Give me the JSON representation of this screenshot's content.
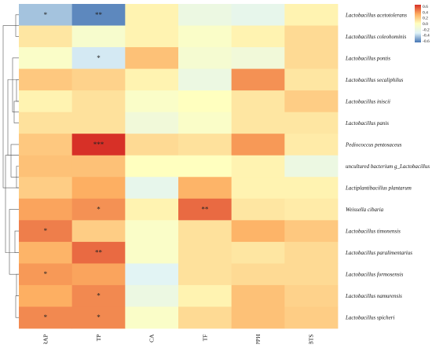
{
  "chart_data": {
    "type": "heatmap",
    "columns": [
      "FRAP",
      "TP",
      "CA",
      "TF",
      "DPPH",
      "ABTS"
    ],
    "rows": [
      "Lactobacillus acetotolerans",
      "Lactobacillus coleohominis",
      "Lactobacillus pontis",
      "Lactobacillus secaliphilus",
      "Lactobacillus iniscii",
      "Lactobacillus panis",
      "Pediococcus pentosaceus",
      "uncultured bacterium g_Lactobacillus",
      "Lactiplantibacillus plantarum",
      "Weissella cibaria",
      "Lactobacillus timonensis",
      "Lactobacillus paralimentarius",
      "Lactobacillus formosensis",
      "Lactobacillus namurensis",
      "Lactobacillus spicheri"
    ],
    "values": [
      [
        -0.45,
        -0.6,
        0.05,
        -0.2,
        -0.25,
        0.05
      ],
      [
        0.1,
        -0.08,
        0.05,
        -0.05,
        0.05,
        0.15
      ],
      [
        -0.05,
        -0.35,
        0.25,
        -0.1,
        -0.15,
        0.15
      ],
      [
        0.22,
        0.18,
        0.05,
        -0.2,
        0.4,
        0.1
      ],
      [
        0.05,
        0.12,
        -0.05,
        0.0,
        0.1,
        0.2
      ],
      [
        0.12,
        0.12,
        -0.15,
        -0.05,
        0.1,
        0.1
      ],
      [
        0.22,
        0.65,
        0.15,
        0.12,
        0.38,
        0.08
      ],
      [
        0.25,
        0.25,
        0.0,
        0.0,
        0.05,
        -0.2
      ],
      [
        0.2,
        0.32,
        -0.25,
        0.3,
        0.05,
        0.05
      ],
      [
        0.35,
        0.4,
        0.05,
        0.5,
        0.1,
        0.08
      ],
      [
        0.45,
        0.2,
        -0.05,
        0.12,
        0.3,
        0.22
      ],
      [
        0.3,
        0.5,
        -0.05,
        0.12,
        0.1,
        0.15
      ],
      [
        0.38,
        0.35,
        -0.3,
        0.12,
        0.15,
        0.15
      ],
      [
        0.32,
        0.42,
        -0.2,
        0.05,
        0.25,
        0.18
      ],
      [
        0.42,
        0.42,
        -0.05,
        0.15,
        0.25,
        0.2
      ]
    ],
    "significance": [
      [
        "*",
        "**",
        "",
        "",
        "",
        ""
      ],
      [
        "",
        "",
        "",
        "",
        "",
        ""
      ],
      [
        "",
        "*",
        "",
        "",
        "",
        ""
      ],
      [
        "",
        "",
        "",
        "",
        "",
        ""
      ],
      [
        "",
        "",
        "",
        "",
        "",
        ""
      ],
      [
        "",
        "",
        "",
        "",
        "",
        ""
      ],
      [
        "",
        "***",
        "",
        "",
        "",
        ""
      ],
      [
        "",
        "",
        "",
        "",
        "",
        ""
      ],
      [
        "",
        "",
        "",
        "",
        "",
        ""
      ],
      [
        "",
        "*",
        "",
        "**",
        "",
        ""
      ],
      [
        "*",
        "",
        "",
        "",
        "",
        ""
      ],
      [
        "",
        "**",
        "",
        "",
        "",
        ""
      ],
      [
        "*",
        "",
        "",
        "",
        "",
        ""
      ],
      [
        "",
        "*",
        "",
        "",
        "",
        ""
      ],
      [
        "*",
        "*",
        "",
        "",
        "",
        ""
      ]
    ],
    "colorbar": {
      "ticks": [
        "0.6",
        "0.4",
        "0.2",
        "0.0",
        "-0.2",
        "-0.4",
        "-0.6"
      ],
      "range": [
        -0.65,
        0.65
      ],
      "colors": {
        "low": "#4575b4",
        "mid_low": "#e0f3f8",
        "mid": "#ffffbf",
        "mid_high": "#fdae61",
        "high": "#d73027"
      }
    },
    "dendrogram": "rows",
    "grid": false,
    "legend_position": "top-right"
  }
}
